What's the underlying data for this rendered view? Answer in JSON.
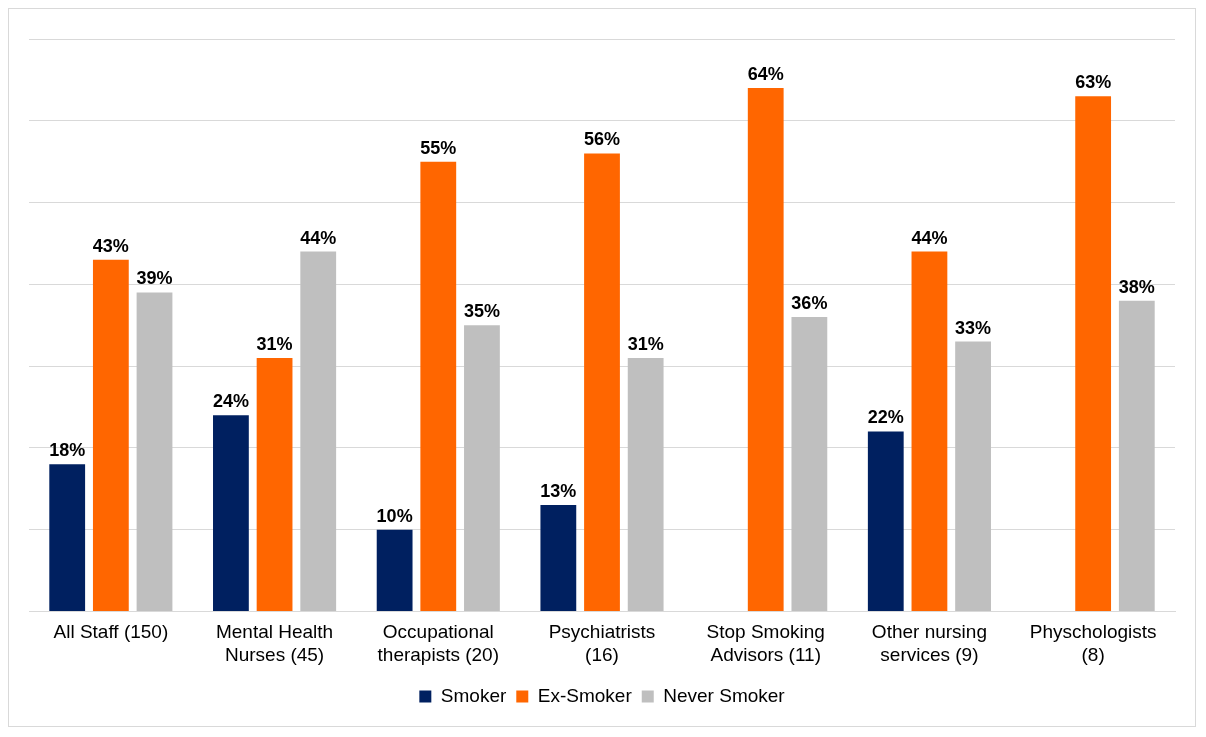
{
  "chart_data": {
    "type": "bar",
    "categories": [
      "All Staff (150)",
      "Mental Health Nurses (45)",
      "Occupational therapists (20)",
      "Psychiatrists (16)",
      "Stop Smoking Advisors (11)",
      "Other nursing services (9)",
      "Physchologists (8)"
    ],
    "series": [
      {
        "name": "Smoker",
        "color": "#002060",
        "values": [
          18,
          24,
          10,
          13,
          null,
          22,
          null
        ],
        "value_labels": [
          "18%",
          "24%",
          "10%",
          "13%",
          null,
          "22%",
          null
        ]
      },
      {
        "name": "Ex-Smoker",
        "color": "#ff6600",
        "values": [
          43,
          31,
          55,
          56,
          64,
          44,
          63
        ],
        "value_labels": [
          "43%",
          "31%",
          "55%",
          "56%",
          "64%",
          "44%",
          "63%"
        ]
      },
      {
        "name": "Never Smoker",
        "color": "#bfbfbf",
        "values": [
          39,
          44,
          35,
          31,
          36,
          33,
          38
        ],
        "value_labels": [
          "39%",
          "44%",
          "35%",
          "31%",
          "36%",
          "33%",
          "38%"
        ]
      }
    ],
    "ylim": [
      0,
      70
    ],
    "yticks": [
      {
        "value": 0,
        "label": null
      },
      {
        "value": 10,
        "label": null
      },
      {
        "value": 20,
        "label": null
      },
      {
        "value": 30,
        "label": null
      },
      {
        "value": 40,
        "label": null
      },
      {
        "value": 50,
        "label": null
      },
      {
        "value": 60,
        "label": null
      },
      {
        "value": 70,
        "label": null
      }
    ],
    "tick_labels": "x",
    "grid": "y",
    "legend": "bottom"
  }
}
